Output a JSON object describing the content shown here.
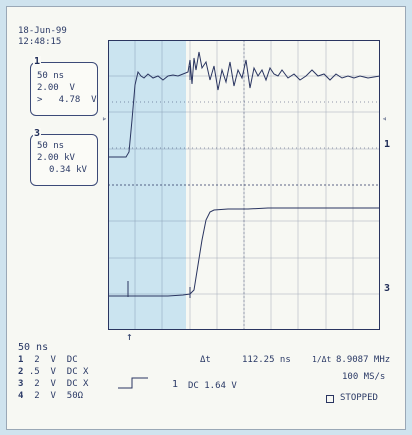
{
  "header": {
    "date": "18-Jun-99",
    "time": "12:48:15"
  },
  "channel1_box": {
    "marker": "1",
    "timebase": "50 ns",
    "volts_div": "2.00  V",
    "reading": ">   4.78  V"
  },
  "channel3_box": {
    "marker": "3",
    "timebase": "50 ns",
    "volts_div": "2.00 kV",
    "reading": "0.34 kV"
  },
  "screen": {
    "trace1_marker": "1",
    "trace3_marker": "3",
    "trace_color": "#2a3560",
    "highlight_color": "#a8d4ec"
  },
  "footer": {
    "timebase": "50 ns",
    "channels": [
      {
        "num": "1",
        "volts": "2",
        "unit": "V",
        "coupling": "DC"
      },
      {
        "num": "2",
        "volts": ".5",
        "unit": "V",
        "coupling": "DC X"
      },
      {
        "num": "3",
        "volts": "2",
        "unit": "V",
        "coupling": "DC X"
      },
      {
        "num": "4",
        "volts": "2",
        "unit": "V",
        "coupling": "50Ω"
      }
    ],
    "delta_t_label": "Δt",
    "delta_t_value": "112.25 ns",
    "freq_label": "1/Δt",
    "freq_value": "8.9087 MHz",
    "trigger_channel": "1",
    "trigger_setting": "DC 1.64 V",
    "sample_rate": "100 MS/s",
    "status": "STOPPED"
  }
}
